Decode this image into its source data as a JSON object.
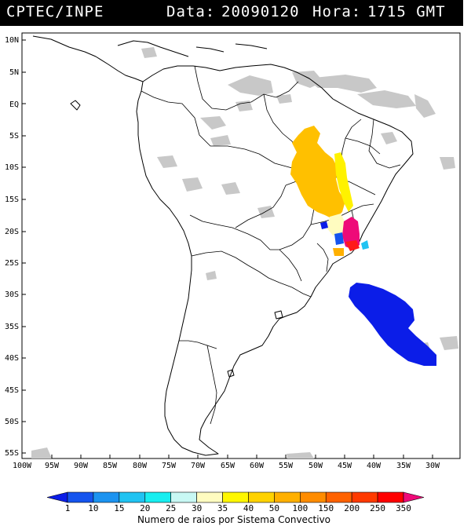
{
  "header": {
    "source": "CPTEC/INPE",
    "data_label": "Data:",
    "date": "20090120",
    "hora_label": "Hora:",
    "time": "1715 GMT"
  },
  "map": {
    "lat_labels": [
      "10N",
      "5N",
      "EQ",
      "5S",
      "10S",
      "15S",
      "20S",
      "25S",
      "30S",
      "35S",
      "40S",
      "45S",
      "50S",
      "55S"
    ],
    "lon_labels": [
      "100W",
      "95W",
      "90W",
      "85W",
      "80W",
      "75W",
      "70W",
      "65W",
      "60W",
      "55W",
      "50W",
      "45W",
      "40W",
      "35W",
      "30W"
    ],
    "colors": {
      "land_outline": "#000000",
      "clouds": "#c8c8c8",
      "frame": "#000000"
    }
  },
  "legend": {
    "values": [
      "1",
      "10",
      "15",
      "20",
      "25",
      "30",
      "35",
      "40",
      "50",
      "100",
      "150",
      "200",
      "250",
      "350"
    ],
    "colors": [
      "#0b1de8",
      "#1554ee",
      "#1c93f0",
      "#20c3f2",
      "#18eef0",
      "#c8f8f4",
      "#fffcc0",
      "#fff700",
      "#ffd200",
      "#ffb000",
      "#ff8c00",
      "#ff6200",
      "#ff3a00",
      "#ff0000",
      "#ee0a78"
    ],
    "caption": "Numero de raios por Sistema Convectivo"
  }
}
